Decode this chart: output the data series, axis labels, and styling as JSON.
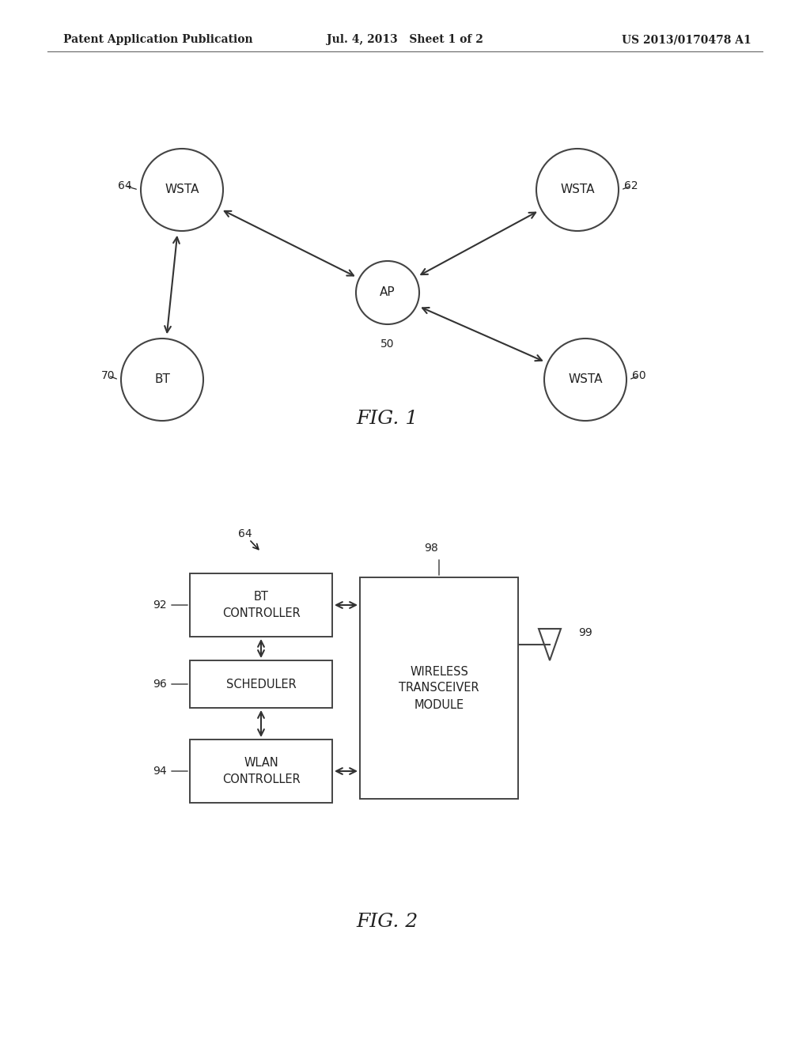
{
  "bg_color": "#ffffff",
  "header_left": "Patent Application Publication",
  "header_mid": "Jul. 4, 2013   Sheet 1 of 2",
  "header_right": "US 2013/0170478 A1",
  "fig1_title": "FIG. 1",
  "fig2_title": "FIG. 2",
  "text_color": "#222222",
  "node_color": "#ffffff",
  "node_edge_color": "#444444",
  "arrow_color": "#333333",
  "line_color": "#555555"
}
